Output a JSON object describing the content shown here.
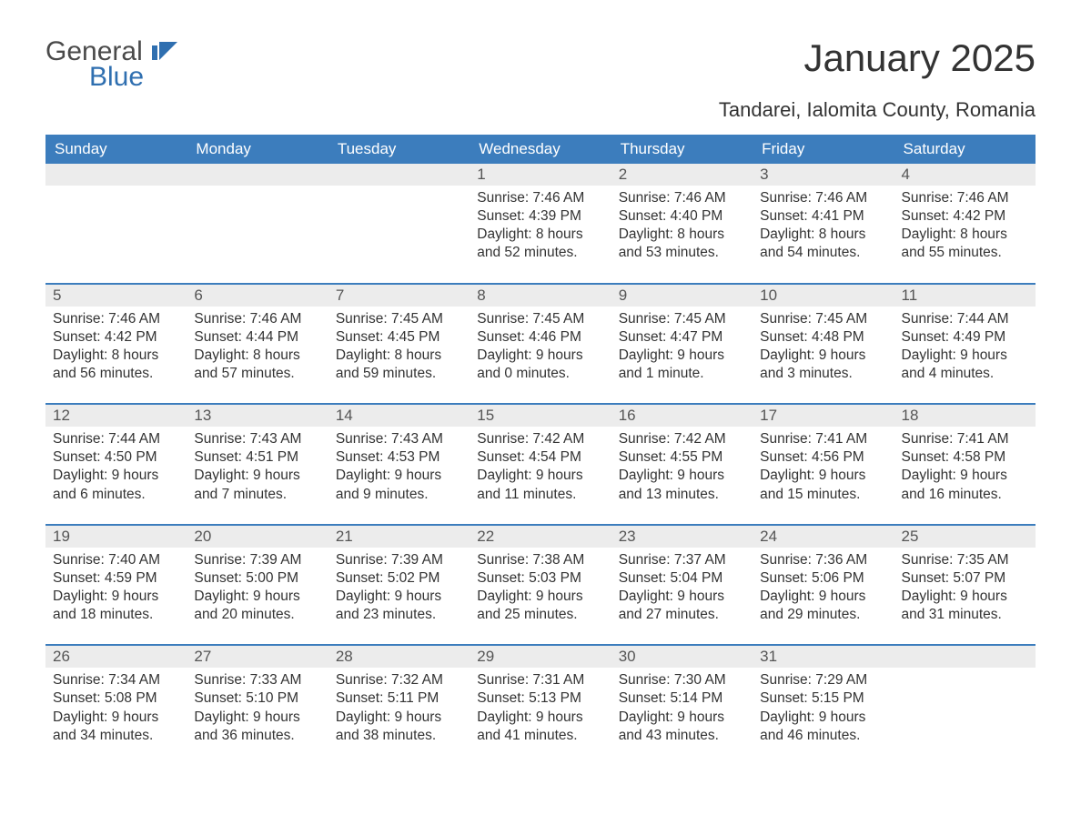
{
  "logo": {
    "text1": "General",
    "text2": "Blue",
    "accent_color": "#2f6fb0"
  },
  "title": "January 2025",
  "subtitle": "Tandarei, Ialomita County, Romania",
  "colors": {
    "header_bg": "#3c7dbd",
    "header_fg": "#ffffff",
    "daynum_bg": "#ececec",
    "daynum_fg": "#555555",
    "body_fg": "#333333",
    "row_border": "#3c7dbd",
    "page_bg": "#ffffff"
  },
  "fonts": {
    "title_size": 42,
    "subtitle_size": 22,
    "weekday_size": 17,
    "body_size": 15.5
  },
  "weekdays": [
    "Sunday",
    "Monday",
    "Tuesday",
    "Wednesday",
    "Thursday",
    "Friday",
    "Saturday"
  ],
  "weeks": [
    [
      null,
      null,
      null,
      {
        "n": "1",
        "sunrise": "Sunrise: 7:46 AM",
        "sunset": "Sunset: 4:39 PM",
        "d1": "Daylight: 8 hours",
        "d2": "and 52 minutes."
      },
      {
        "n": "2",
        "sunrise": "Sunrise: 7:46 AM",
        "sunset": "Sunset: 4:40 PM",
        "d1": "Daylight: 8 hours",
        "d2": "and 53 minutes."
      },
      {
        "n": "3",
        "sunrise": "Sunrise: 7:46 AM",
        "sunset": "Sunset: 4:41 PM",
        "d1": "Daylight: 8 hours",
        "d2": "and 54 minutes."
      },
      {
        "n": "4",
        "sunrise": "Sunrise: 7:46 AM",
        "sunset": "Sunset: 4:42 PM",
        "d1": "Daylight: 8 hours",
        "d2": "and 55 minutes."
      }
    ],
    [
      {
        "n": "5",
        "sunrise": "Sunrise: 7:46 AM",
        "sunset": "Sunset: 4:42 PM",
        "d1": "Daylight: 8 hours",
        "d2": "and 56 minutes."
      },
      {
        "n": "6",
        "sunrise": "Sunrise: 7:46 AM",
        "sunset": "Sunset: 4:44 PM",
        "d1": "Daylight: 8 hours",
        "d2": "and 57 minutes."
      },
      {
        "n": "7",
        "sunrise": "Sunrise: 7:45 AM",
        "sunset": "Sunset: 4:45 PM",
        "d1": "Daylight: 8 hours",
        "d2": "and 59 minutes."
      },
      {
        "n": "8",
        "sunrise": "Sunrise: 7:45 AM",
        "sunset": "Sunset: 4:46 PM",
        "d1": "Daylight: 9 hours",
        "d2": "and 0 minutes."
      },
      {
        "n": "9",
        "sunrise": "Sunrise: 7:45 AM",
        "sunset": "Sunset: 4:47 PM",
        "d1": "Daylight: 9 hours",
        "d2": "and 1 minute."
      },
      {
        "n": "10",
        "sunrise": "Sunrise: 7:45 AM",
        "sunset": "Sunset: 4:48 PM",
        "d1": "Daylight: 9 hours",
        "d2": "and 3 minutes."
      },
      {
        "n": "11",
        "sunrise": "Sunrise: 7:44 AM",
        "sunset": "Sunset: 4:49 PM",
        "d1": "Daylight: 9 hours",
        "d2": "and 4 minutes."
      }
    ],
    [
      {
        "n": "12",
        "sunrise": "Sunrise: 7:44 AM",
        "sunset": "Sunset: 4:50 PM",
        "d1": "Daylight: 9 hours",
        "d2": "and 6 minutes."
      },
      {
        "n": "13",
        "sunrise": "Sunrise: 7:43 AM",
        "sunset": "Sunset: 4:51 PM",
        "d1": "Daylight: 9 hours",
        "d2": "and 7 minutes."
      },
      {
        "n": "14",
        "sunrise": "Sunrise: 7:43 AM",
        "sunset": "Sunset: 4:53 PM",
        "d1": "Daylight: 9 hours",
        "d2": "and 9 minutes."
      },
      {
        "n": "15",
        "sunrise": "Sunrise: 7:42 AM",
        "sunset": "Sunset: 4:54 PM",
        "d1": "Daylight: 9 hours",
        "d2": "and 11 minutes."
      },
      {
        "n": "16",
        "sunrise": "Sunrise: 7:42 AM",
        "sunset": "Sunset: 4:55 PM",
        "d1": "Daylight: 9 hours",
        "d2": "and 13 minutes."
      },
      {
        "n": "17",
        "sunrise": "Sunrise: 7:41 AM",
        "sunset": "Sunset: 4:56 PM",
        "d1": "Daylight: 9 hours",
        "d2": "and 15 minutes."
      },
      {
        "n": "18",
        "sunrise": "Sunrise: 7:41 AM",
        "sunset": "Sunset: 4:58 PM",
        "d1": "Daylight: 9 hours",
        "d2": "and 16 minutes."
      }
    ],
    [
      {
        "n": "19",
        "sunrise": "Sunrise: 7:40 AM",
        "sunset": "Sunset: 4:59 PM",
        "d1": "Daylight: 9 hours",
        "d2": "and 18 minutes."
      },
      {
        "n": "20",
        "sunrise": "Sunrise: 7:39 AM",
        "sunset": "Sunset: 5:00 PM",
        "d1": "Daylight: 9 hours",
        "d2": "and 20 minutes."
      },
      {
        "n": "21",
        "sunrise": "Sunrise: 7:39 AM",
        "sunset": "Sunset: 5:02 PM",
        "d1": "Daylight: 9 hours",
        "d2": "and 23 minutes."
      },
      {
        "n": "22",
        "sunrise": "Sunrise: 7:38 AM",
        "sunset": "Sunset: 5:03 PM",
        "d1": "Daylight: 9 hours",
        "d2": "and 25 minutes."
      },
      {
        "n": "23",
        "sunrise": "Sunrise: 7:37 AM",
        "sunset": "Sunset: 5:04 PM",
        "d1": "Daylight: 9 hours",
        "d2": "and 27 minutes."
      },
      {
        "n": "24",
        "sunrise": "Sunrise: 7:36 AM",
        "sunset": "Sunset: 5:06 PM",
        "d1": "Daylight: 9 hours",
        "d2": "and 29 minutes."
      },
      {
        "n": "25",
        "sunrise": "Sunrise: 7:35 AM",
        "sunset": "Sunset: 5:07 PM",
        "d1": "Daylight: 9 hours",
        "d2": "and 31 minutes."
      }
    ],
    [
      {
        "n": "26",
        "sunrise": "Sunrise: 7:34 AM",
        "sunset": "Sunset: 5:08 PM",
        "d1": "Daylight: 9 hours",
        "d2": "and 34 minutes."
      },
      {
        "n": "27",
        "sunrise": "Sunrise: 7:33 AM",
        "sunset": "Sunset: 5:10 PM",
        "d1": "Daylight: 9 hours",
        "d2": "and 36 minutes."
      },
      {
        "n": "28",
        "sunrise": "Sunrise: 7:32 AM",
        "sunset": "Sunset: 5:11 PM",
        "d1": "Daylight: 9 hours",
        "d2": "and 38 minutes."
      },
      {
        "n": "29",
        "sunrise": "Sunrise: 7:31 AM",
        "sunset": "Sunset: 5:13 PM",
        "d1": "Daylight: 9 hours",
        "d2": "and 41 minutes."
      },
      {
        "n": "30",
        "sunrise": "Sunrise: 7:30 AM",
        "sunset": "Sunset: 5:14 PM",
        "d1": "Daylight: 9 hours",
        "d2": "and 43 minutes."
      },
      {
        "n": "31",
        "sunrise": "Sunrise: 7:29 AM",
        "sunset": "Sunset: 5:15 PM",
        "d1": "Daylight: 9 hours",
        "d2": "and 46 minutes."
      },
      null
    ]
  ]
}
